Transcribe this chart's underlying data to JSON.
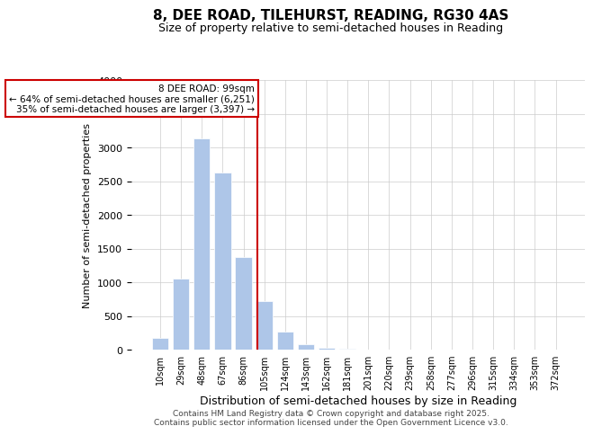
{
  "title": "8, DEE ROAD, TILEHURST, READING, RG30 4AS",
  "subtitle": "Size of property relative to semi-detached houses in Reading",
  "xlabel": "Distribution of semi-detached houses by size in Reading",
  "ylabel": "Number of semi-detached properties",
  "property_size": 99,
  "property_label": "8 DEE ROAD: 99sqm",
  "annotation_line1": "← 64% of semi-detached houses are smaller (6,251)",
  "annotation_line2": "35% of semi-detached houses are larger (3,397) →",
  "footer_line1": "Contains HM Land Registry data © Crown copyright and database right 2025.",
  "footer_line2": "Contains public sector information licensed under the Open Government Licence v3.0.",
  "bins": [
    "10sqm",
    "29sqm",
    "48sqm",
    "67sqm",
    "86sqm",
    "105sqm",
    "124sqm",
    "143sqm",
    "162sqm",
    "181sqm",
    "201sqm",
    "220sqm",
    "239sqm",
    "258sqm",
    "277sqm",
    "296sqm",
    "315sqm",
    "334sqm",
    "353sqm",
    "372sqm"
  ],
  "values": [
    170,
    1060,
    3140,
    2630,
    1380,
    720,
    270,
    80,
    30,
    10,
    5,
    3,
    2,
    1,
    1,
    1,
    0,
    0,
    0,
    0
  ],
  "bar_color": "#aec6e8",
  "property_line_color": "#cc0000",
  "annotation_box_edge_color": "#cc0000",
  "background_color": "#ffffff",
  "grid_color": "#cccccc",
  "ylim": [
    0,
    4000
  ],
  "yticks": [
    0,
    500,
    1000,
    1500,
    2000,
    2500,
    3000,
    3500,
    4000
  ]
}
